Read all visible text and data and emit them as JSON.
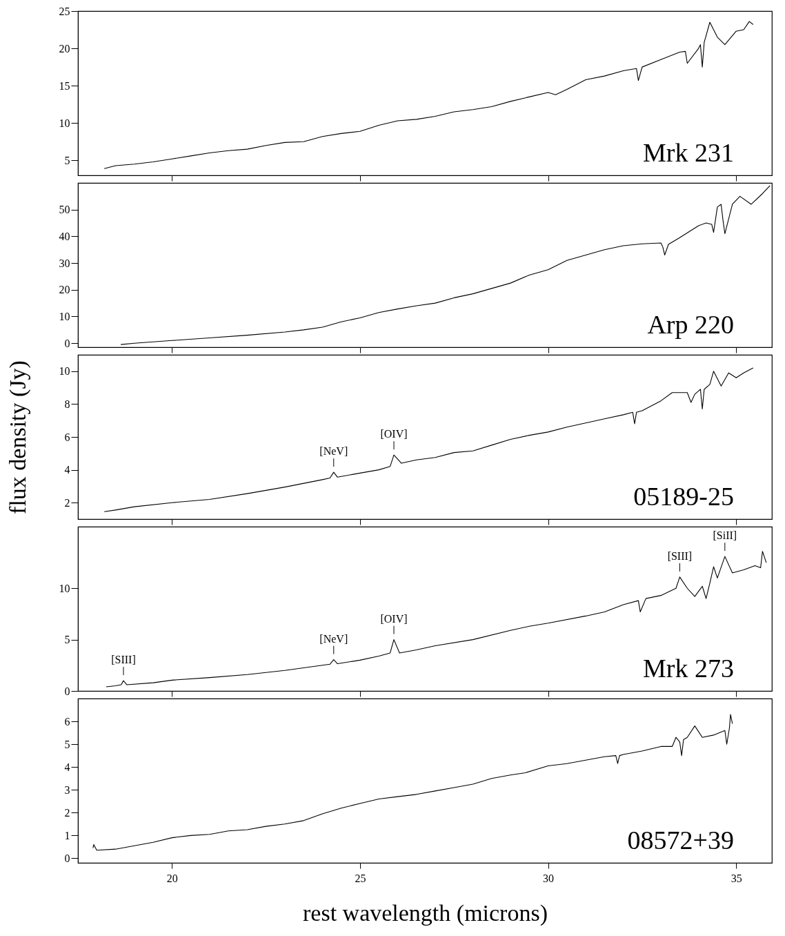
{
  "chart_data": [
    {
      "type": "line",
      "xlim": [
        17.5,
        35.95
      ],
      "xticks": [
        20,
        25,
        30,
        35
      ],
      "ylim": [
        3,
        25
      ],
      "yticks": [
        5,
        10,
        15,
        20,
        25
      ],
      "tick_labels": "y",
      "series": [
        {
          "name": "Mrk 231",
          "color": "#000000",
          "x": [
            18.2,
            18.5,
            19,
            19.5,
            20,
            20.5,
            21,
            21.5,
            22,
            22.5,
            23,
            23.5,
            24,
            24.5,
            25,
            25.5,
            26,
            26.5,
            27,
            27.5,
            28,
            28.5,
            29,
            29.5,
            30,
            30.2,
            30.5,
            31,
            31.5,
            32,
            32.35,
            32.4,
            32.5,
            33,
            33.5,
            33.65,
            33.7,
            34,
            34.05,
            34.1,
            34.15,
            34.3,
            34.5,
            34.7,
            35,
            35.2,
            35.35,
            35.45
          ],
          "values": [
            3.9,
            4.3,
            4.5,
            4.8,
            5.2,
            5.6,
            6.0,
            6.3,
            6.5,
            7.0,
            7.4,
            7.5,
            8.2,
            8.6,
            8.9,
            9.7,
            10.3,
            10.5,
            10.9,
            11.5,
            11.8,
            12.2,
            12.9,
            13.5,
            14.1,
            13.8,
            14.5,
            15.8,
            16.3,
            17.0,
            17.3,
            15.7,
            17.5,
            18.5,
            19.5,
            19.6,
            18.0,
            20.0,
            20.5,
            17.5,
            20.8,
            23.5,
            21.5,
            20.5,
            22.3,
            22.5,
            23.6,
            23.2
          ]
        }
      ]
    },
    {
      "type": "line",
      "xlim": [
        17.5,
        35.95
      ],
      "xticks": [
        20,
        25,
        30,
        35
      ],
      "ylim": [
        -1.5,
        60
      ],
      "yticks": [
        0,
        10,
        20,
        30,
        40,
        50
      ],
      "tick_labels": "y",
      "series": [
        {
          "name": "Arp 220",
          "color": "#000000",
          "x": [
            18.64,
            19,
            20,
            21,
            22,
            23,
            23.5,
            24,
            24.5,
            25,
            25.5,
            26,
            26.5,
            27,
            27.5,
            28,
            28.5,
            29,
            29.5,
            30,
            30.5,
            31,
            31.5,
            32,
            32.5,
            33,
            33.05,
            33.1,
            33.2,
            33.5,
            34,
            34.2,
            34.35,
            34.4,
            34.5,
            34.6,
            34.65,
            34.7,
            34.9,
            35.1,
            35.4,
            35.7,
            35.9
          ],
          "values": [
            -0.5,
            0,
            1.0,
            2.0,
            3.0,
            4.2,
            5.0,
            6.0,
            8.0,
            9.5,
            11.5,
            12.8,
            14.0,
            15.0,
            17.0,
            18.5,
            20.5,
            22.5,
            25.5,
            27.5,
            31.0,
            33.0,
            35.0,
            36.5,
            37.2,
            37.5,
            36.0,
            33.0,
            37.0,
            39.5,
            44.0,
            45.0,
            44.5,
            41.5,
            51.0,
            52.0,
            46.0,
            41.0,
            52.0,
            55.0,
            52.0,
            56.0,
            59.0
          ]
        }
      ]
    },
    {
      "type": "line",
      "xlim": [
        17.5,
        35.95
      ],
      "xticks": [
        20,
        25,
        30,
        35
      ],
      "ylim": [
        1,
        11
      ],
      "yticks": [
        2,
        4,
        6,
        8,
        10
      ],
      "tick_labels": "y",
      "ylabel": "flux density (Jy)",
      "annotations": [
        {
          "text": "[NeV]",
          "x": 24.3,
          "y": 3.85
        },
        {
          "text": "[OIV]",
          "x": 25.9,
          "y": 4.9
        }
      ],
      "series": [
        {
          "name": "05189-25",
          "color": "#000000",
          "x": [
            18.2,
            18.5,
            19,
            20,
            21,
            22,
            23,
            24,
            24.2,
            24.3,
            24.4,
            25,
            25.5,
            25.8,
            25.9,
            26.1,
            26.5,
            27,
            27.5,
            28,
            28.5,
            29,
            29.5,
            30,
            30.5,
            31,
            31.5,
            32,
            32.25,
            32.3,
            32.35,
            32.5,
            33,
            33.3,
            33.7,
            33.8,
            33.9,
            34,
            34.05,
            34.1,
            34.15,
            34.3,
            34.4,
            34.6,
            34.8,
            35,
            35.2,
            35.45
          ],
          "values": [
            1.45,
            1.55,
            1.75,
            2.0,
            2.2,
            2.55,
            2.95,
            3.4,
            3.5,
            3.85,
            3.55,
            3.8,
            4.0,
            4.2,
            4.9,
            4.4,
            4.6,
            4.75,
            5.05,
            5.15,
            5.5,
            5.85,
            6.1,
            6.3,
            6.6,
            6.85,
            7.1,
            7.35,
            7.5,
            6.8,
            7.5,
            7.6,
            8.2,
            8.7,
            8.7,
            8.1,
            8.6,
            8.8,
            8.9,
            7.7,
            8.9,
            9.2,
            10.0,
            9.1,
            9.9,
            9.6,
            9.9,
            10.2
          ]
        }
      ]
    },
    {
      "type": "line",
      "xlim": [
        17.5,
        35.95
      ],
      "xticks": [
        20,
        25,
        30,
        35
      ],
      "ylim": [
        0,
        16
      ],
      "yticks": [
        0,
        5,
        10
      ],
      "tick_labels": "y",
      "annotations": [
        {
          "text": "[SIII]",
          "x": 18.71,
          "y": 1.0
        },
        {
          "text": "[NeV]",
          "x": 24.3,
          "y": 3.05
        },
        {
          "text": "[OIV]",
          "x": 25.9,
          "y": 5.0
        },
        {
          "text": "[SIII]",
          "x": 33.5,
          "y": 11.1
        },
        {
          "text": "[SiII]",
          "x": 34.7,
          "y": 13.1
        }
      ],
      "series": [
        {
          "name": "Mrk 273",
          "color": "#000000",
          "x": [
            18.25,
            18.5,
            18.65,
            18.71,
            18.8,
            19.5,
            20,
            21,
            22,
            23,
            24,
            24.2,
            24.3,
            24.4,
            25,
            25.5,
            25.8,
            25.9,
            26.05,
            26.5,
            27,
            28,
            29,
            29.5,
            30,
            31,
            31.5,
            32,
            32.4,
            32.45,
            32.6,
            33,
            33.4,
            33.5,
            33.7,
            33.9,
            34.1,
            34.2,
            34.3,
            34.4,
            34.5,
            34.7,
            34.9,
            35.2,
            35.5,
            35.65,
            35.7,
            35.8
          ],
          "values": [
            0.4,
            0.5,
            0.6,
            1.0,
            0.6,
            0.8,
            1.05,
            1.3,
            1.6,
            2.0,
            2.5,
            2.6,
            3.05,
            2.65,
            3.0,
            3.4,
            3.7,
            5.0,
            3.7,
            4.0,
            4.4,
            5.0,
            5.9,
            6.3,
            6.6,
            7.3,
            7.7,
            8.4,
            8.8,
            7.7,
            9.0,
            9.3,
            10.0,
            11.1,
            10.0,
            9.2,
            10.2,
            9.0,
            10.5,
            12.1,
            11.0,
            13.1,
            11.5,
            11.8,
            12.2,
            12.0,
            13.6,
            12.5
          ]
        }
      ]
    },
    {
      "type": "line",
      "xlim": [
        17.5,
        35.95
      ],
      "xticks": [
        20,
        25,
        30,
        35
      ],
      "ylim": [
        -0.2,
        7
      ],
      "yticks": [
        0,
        1,
        2,
        3,
        4,
        5,
        6
      ],
      "xlabel": "rest wavelength (microns)",
      "series": [
        {
          "name": "08572+39",
          "color": "#000000",
          "x": [
            17.9,
            17.92,
            18.0,
            18.5,
            19,
            19.5,
            20,
            20.5,
            21,
            21.5,
            22,
            22.5,
            23,
            23.5,
            24,
            24.5,
            25,
            25.5,
            26,
            26.5,
            27,
            27.5,
            28,
            28.5,
            29,
            29.4,
            30,
            30.5,
            31,
            31.5,
            31.8,
            31.85,
            31.9,
            32,
            32.5,
            33,
            33.3,
            33.4,
            33.5,
            33.55,
            33.6,
            33.7,
            33.9,
            34.1,
            34.4,
            34.7,
            34.75,
            34.82,
            34.85,
            34.9
          ],
          "values": [
            0.45,
            0.6,
            0.35,
            0.4,
            0.55,
            0.7,
            0.9,
            1.0,
            1.05,
            1.2,
            1.25,
            1.4,
            1.5,
            1.65,
            1.95,
            2.2,
            2.4,
            2.6,
            2.7,
            2.8,
            2.95,
            3.1,
            3.25,
            3.5,
            3.65,
            3.75,
            4.05,
            4.15,
            4.3,
            4.45,
            4.5,
            4.15,
            4.5,
            4.55,
            4.7,
            4.9,
            4.9,
            5.3,
            5.1,
            4.5,
            5.2,
            5.3,
            5.8,
            5.3,
            5.4,
            5.6,
            5.0,
            5.7,
            6.3,
            5.9
          ]
        }
      ]
    }
  ]
}
